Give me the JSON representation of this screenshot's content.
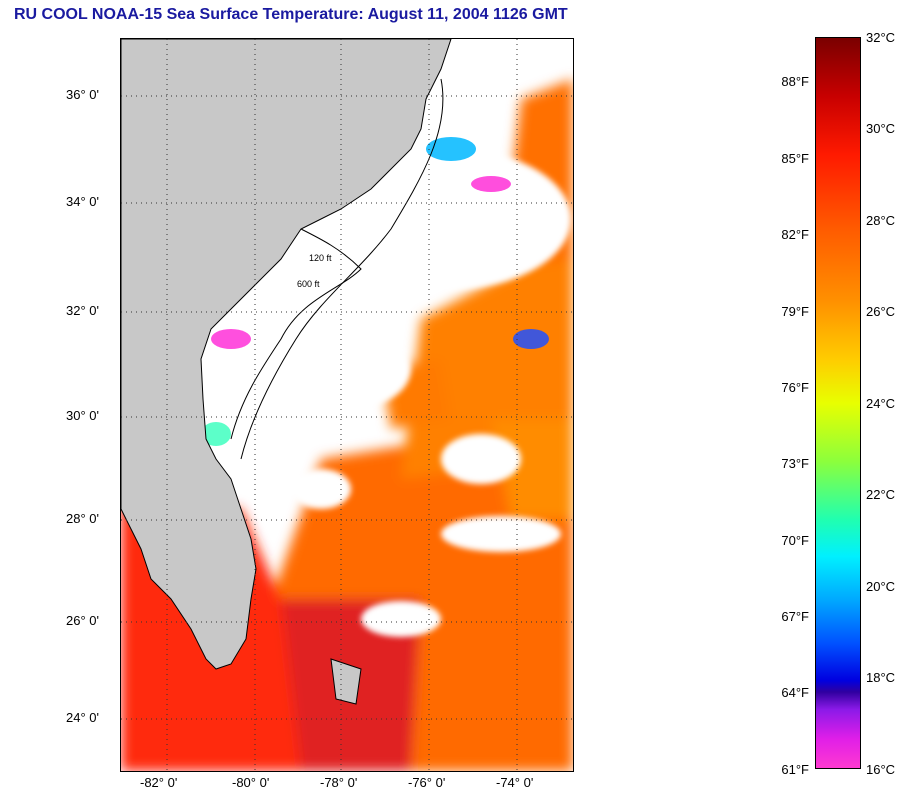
{
  "title": "RU COOL  NOAA-15  Sea Surface Temperature:  August 11, 2004 1126 GMT",
  "map": {
    "lat_labels": [
      "36° 0'",
      "34° 0'",
      "32° 0'",
      "30° 0'",
      "28° 0'",
      "26° 0'",
      "24° 0'"
    ],
    "lon_labels": [
      "-82° 0'",
      "-80° 0'",
      "-78° 0'",
      "-76° 0'",
      "-74° 0'"
    ],
    "contour_labels": [
      "120 ft",
      "600 ft"
    ],
    "colors": {
      "land": "#c8c8c8",
      "cloud": "#ffffff",
      "warm_sst": "#ff5a00"
    }
  },
  "colorbar": {
    "celsius_labels": [
      "32°C",
      "30°C",
      "28°C",
      "26°C",
      "24°C",
      "22°C",
      "20°C",
      "18°C",
      "16°C"
    ],
    "fahrenheit_labels": [
      "88°F",
      "85°F",
      "82°F",
      "79°F",
      "76°F",
      "73°F",
      "70°F",
      "67°F",
      "64°F",
      "61°F"
    ]
  }
}
